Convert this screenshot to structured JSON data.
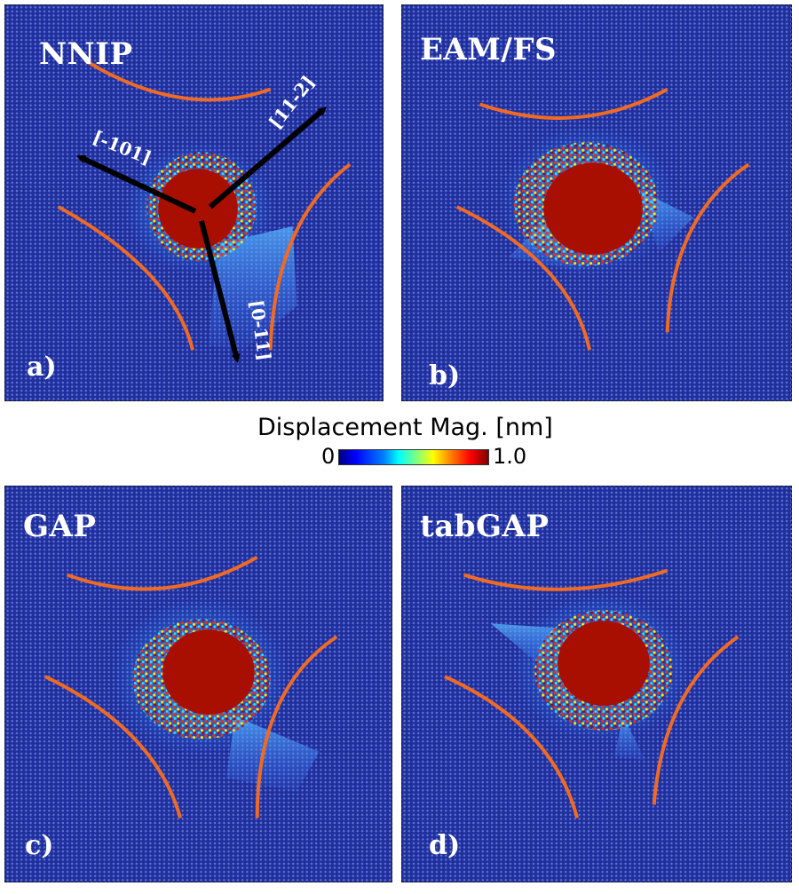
{
  "panels": [
    {
      "title": "NNIP",
      "label": "a)"
    },
    {
      "title": "EAM/FS",
      "label": "b)"
    },
    {
      "title": "GAP",
      "label": "c)"
    },
    {
      "title": "tabGAP",
      "label": "d)"
    }
  ],
  "directions": {
    "d1": "[-101]",
    "d2": "[11-2]",
    "d3": "[0-11]"
  },
  "colorbar": {
    "title": "Displacement Mag. [nm]",
    "min": "0",
    "max": "1.0",
    "colors": [
      "#00007f",
      "#0000ff",
      "#0080ff",
      "#00ffff",
      "#ffff00",
      "#ff7f00",
      "#ff0000",
      "#7f0000"
    ]
  },
  "colors": {
    "background": "#1f2f9e",
    "guide_line": "#f06a24",
    "arrow": "#000000"
  }
}
